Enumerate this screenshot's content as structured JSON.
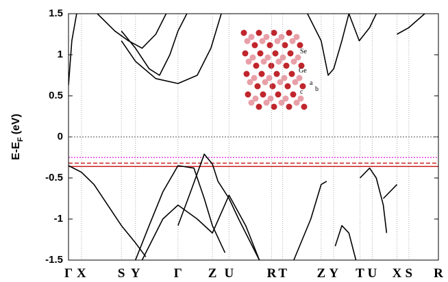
{
  "chart_data": {
    "type": "line",
    "ylabel": [
      "E-E",
      "F",
      "(eV)"
    ],
    "xlim": [
      0,
      1
    ],
    "ylim": [
      -1.5,
      1.5
    ],
    "yticks": [
      -1.5,
      -1,
      -0.5,
      0,
      0.5,
      1,
      1.5
    ],
    "xticks": [
      {
        "value": 0,
        "label": "Γ"
      },
      {
        "value": 0.035,
        "label": "X"
      },
      {
        "value": 0.143,
        "label": "S"
      },
      {
        "value": 0.181,
        "label": "Y"
      },
      {
        "value": 0.296,
        "label": "Γ"
      },
      {
        "value": 0.389,
        "label": "Z"
      },
      {
        "value": 0.434,
        "label": "U"
      },
      {
        "value": 0.549,
        "label": "R"
      },
      {
        "value": 0.579,
        "label": "T"
      },
      {
        "value": 0.683,
        "label": "Z"
      },
      {
        "value": 0.717,
        "label": "Y"
      },
      {
        "value": 0.788,
        "label": "T"
      },
      {
        "value": 0.821,
        "label": "U"
      },
      {
        "value": 0.888,
        "label": "X"
      },
      {
        "value": 0.92,
        "label": "S"
      },
      {
        "value": 1,
        "label": "R"
      }
    ],
    "grid": true,
    "hlines": [
      {
        "value": 0,
        "color": "#888888",
        "style": "dotted"
      },
      {
        "value": -0.25,
        "color": "#e040e0",
        "style": "dotted"
      },
      {
        "value": -0.32,
        "color": "#cc2222",
        "style": "dashed"
      },
      {
        "value": -0.36,
        "color": "#cc2222",
        "style": "solid"
      }
    ],
    "series": [
      {
        "color": "#000000",
        "x": [
          0,
          0.035,
          0.069,
          0.106,
          0.143,
          0.181,
          0.209
        ],
        "values": [
          -0.35,
          -0.43,
          -0.58,
          -0.83,
          -1.08,
          -1.29,
          -1.46
        ]
      },
      {
        "color": "#000000",
        "x": [
          0.181,
          0.218,
          0.255,
          0.296,
          0.339,
          0.367,
          0.389,
          0.423
        ],
        "values": [
          -1.5,
          -1.08,
          -0.67,
          -0.35,
          -0.38,
          -0.75,
          -1.08,
          -1.41
        ]
      },
      {
        "color": "#000000",
        "x": [
          0.296,
          0.33,
          0.367,
          0.389,
          0.404,
          0.434,
          0.46,
          0.497,
          0.516
        ],
        "values": [
          -1.08,
          -0.67,
          -0.21,
          -0.33,
          -0.54,
          -0.75,
          -1,
          -1.33,
          -1.5
        ]
      },
      {
        "color": "#000000",
        "x": [
          0.199,
          0.255,
          0.296,
          0.348,
          0.389,
          0.434,
          0.479,
          0.516
        ],
        "values": [
          -1.5,
          -1,
          -0.83,
          -1,
          -1.17,
          -0.71,
          -1.08,
          -1.5
        ]
      },
      {
        "color": "#000000",
        "x": [
          0.609,
          0.655,
          0.683,
          0.698
        ],
        "values": [
          -1.5,
          -1,
          -0.58,
          -0.54
        ]
      },
      {
        "color": "#000000",
        "x": [
          0.721,
          0.739,
          0.758,
          0.777
        ],
        "values": [
          -1.33,
          -1.08,
          -1.17,
          -1.5
        ]
      },
      {
        "color": "#000000",
        "x": [
          0.788,
          0.814,
          0.832,
          0.851,
          0.86
        ],
        "values": [
          -0.5,
          -0.38,
          -0.5,
          -0.83,
          -1.17
        ]
      },
      {
        "color": "#000000",
        "x": [
          0.851,
          0.888
        ],
        "values": [
          -0.75,
          -0.58
        ]
      },
      {
        "color": "#000000",
        "x": [
          0,
          0.009,
          0.022
        ],
        "values": [
          0.63,
          1.17,
          1.5
        ]
      },
      {
        "color": "#000000",
        "x": [
          0.078,
          0.125,
          0.162,
          0.199,
          0.236,
          0.264
        ],
        "values": [
          1.5,
          1.29,
          1.17,
          1.08,
          1.25,
          1.5
        ]
      },
      {
        "color": "#000000",
        "x": [
          0.143,
          0.181,
          0.236,
          0.296,
          0.348,
          0.385,
          0.413
        ],
        "values": [
          1.17,
          0.92,
          0.71,
          0.65,
          0.75,
          1.08,
          1.5
        ]
      },
      {
        "color": "#000000",
        "x": [
          0.143,
          0.181,
          0.218,
          0.246,
          0.274,
          0.296,
          0.32
        ],
        "values": [
          1.29,
          1.08,
          0.83,
          0.75,
          1,
          1.29,
          1.5
        ]
      },
      {
        "color": "#000000",
        "x": [
          0.646,
          0.683,
          0.702,
          0.717,
          0.739,
          0.758
        ],
        "values": [
          1.5,
          1.17,
          0.75,
          0.83,
          1.17,
          1.5
        ]
      },
      {
        "color": "#000000",
        "x": [
          0.758,
          0.786,
          0.814,
          0.832
        ],
        "values": [
          1.5,
          1.17,
          1.33,
          1.5
        ]
      },
      {
        "color": "#000000",
        "x": [
          0.888,
          0.92,
          0.963
        ],
        "values": [
          1.25,
          1.33,
          1.5
        ]
      }
    ],
    "annotations": [
      "Se",
      "Ge",
      "a",
      "b",
      "c"
    ]
  }
}
